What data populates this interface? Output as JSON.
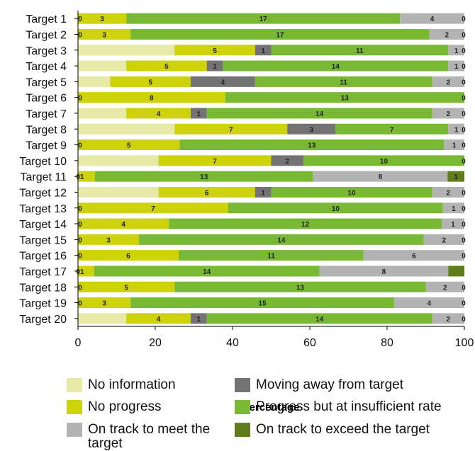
{
  "chart_data": {
    "type": "bar",
    "orientation": "horizontal",
    "stacked": true,
    "categories": [
      "Target 1",
      "Target 2",
      "Target 3",
      "Target 4",
      "Target 5",
      "Target 6",
      "Target 7",
      "Target 8",
      "Target 9",
      "Target 10",
      "Target 11",
      "Target 12",
      "Target 13",
      "Target 14",
      "Target 15",
      "Target 16",
      "Target 17",
      "Target 18",
      "Target 19",
      "Target 20"
    ],
    "series": [
      {
        "name": "No information",
        "color": "#e6eaa6",
        "values": [
          0,
          0,
          6,
          3,
          2,
          0,
          3,
          6,
          0,
          5,
          0,
          5,
          0,
          0,
          0,
          0,
          0,
          0,
          0,
          3
        ]
      },
      {
        "name": "No progress",
        "color": "#cdd20a",
        "values": [
          3,
          3,
          5,
          5,
          5,
          8,
          4,
          7,
          5,
          7,
          1,
          6,
          7,
          4,
          3,
          6,
          1,
          5,
          3,
          4
        ]
      },
      {
        "name": "Moving away from target",
        "color": "#737373",
        "values": [
          0,
          0,
          1,
          1,
          4,
          0,
          1,
          3,
          0,
          2,
          0,
          1,
          0,
          0,
          0,
          0,
          0,
          0,
          0,
          1
        ]
      },
      {
        "name": "Progress but at insufficient rate",
        "color": "#78b832",
        "values": [
          17,
          17,
          11,
          14,
          11,
          13,
          14,
          7,
          13,
          10,
          13,
          10,
          10,
          12,
          14,
          11,
          14,
          13,
          15,
          14
        ]
      },
      {
        "name": "On track to meet the target",
        "color": "#b3b3b3",
        "values": [
          4,
          2,
          1,
          1,
          2,
          0,
          2,
          1,
          1,
          0,
          8,
          2,
          1,
          1,
          2,
          6,
          8,
          2,
          4,
          2
        ]
      },
      {
        "name": "On track to exceed the target",
        "color": "#5f7d1a",
        "values": [
          0,
          0,
          0,
          0,
          0,
          0,
          0,
          0,
          0,
          0,
          1,
          0,
          0,
          0,
          0,
          0,
          1,
          0,
          0,
          0
        ]
      }
    ],
    "label_texts": [
      [
        "",
        "0",
        "3",
        "",
        "17",
        "4",
        "0"
      ],
      [
        "",
        "0",
        "3",
        "",
        "17",
        "2",
        "0"
      ],
      [
        "",
        "",
        "5",
        "1",
        "11",
        "1",
        "0"
      ],
      [
        "",
        "",
        "5",
        "1",
        "14",
        "1",
        "0"
      ],
      [
        "",
        "",
        "5",
        "4",
        "11",
        "2",
        "0"
      ],
      [
        "",
        "0",
        "8",
        "",
        "13",
        "",
        "0"
      ],
      [
        "",
        "",
        "4",
        "1",
        "14",
        "2",
        "0"
      ],
      [
        "",
        "",
        "7",
        "3",
        "7",
        "1",
        "0"
      ],
      [
        "",
        "0",
        "5",
        "",
        "13",
        "1",
        "0"
      ],
      [
        "",
        "",
        "7",
        "2",
        "10",
        "",
        "0"
      ],
      [
        "",
        "01",
        "",
        "",
        "13",
        "8",
        "1"
      ],
      [
        "",
        "",
        "6",
        "1",
        "10",
        "2",
        "0"
      ],
      [
        "",
        "0",
        "7",
        "",
        "10",
        "1",
        "0"
      ],
      [
        "",
        "0",
        "4",
        "",
        "12",
        "1",
        "0"
      ],
      [
        "",
        "0",
        "3",
        "",
        "14",
        "2",
        "0"
      ],
      [
        "",
        "0",
        "6",
        "",
        "11",
        "6",
        "0"
      ],
      [
        "",
        "01",
        "",
        "",
        "14",
        "8",
        ""
      ],
      [
        "",
        "0",
        "5",
        "",
        "13",
        "2",
        "0"
      ],
      [
        "",
        "0",
        "3",
        "",
        "15",
        "4",
        "0"
      ],
      [
        "",
        "",
        "4",
        "1",
        "14",
        "2",
        "0"
      ]
    ],
    "xlabel": "Percentage",
    "xlim": [
      0,
      100
    ],
    "xticks": [
      "0",
      "20",
      "40",
      "60",
      "80",
      "100"
    ],
    "legend_position": "bottom",
    "grid": false
  },
  "legend": {
    "items": [
      {
        "label": "No information",
        "color": "#e6eaa6"
      },
      {
        "label": "Moving away from target",
        "color": "#737373"
      },
      {
        "label": "No progress",
        "color": "#cdd20a"
      },
      {
        "label": "Progress but at insufficient rate",
        "color": "#78b832"
      },
      {
        "label": "On track to meet the target",
        "color": "#b3b3b3"
      },
      {
        "label": "On track to exceed the target",
        "color": "#5f7d1a"
      }
    ]
  }
}
